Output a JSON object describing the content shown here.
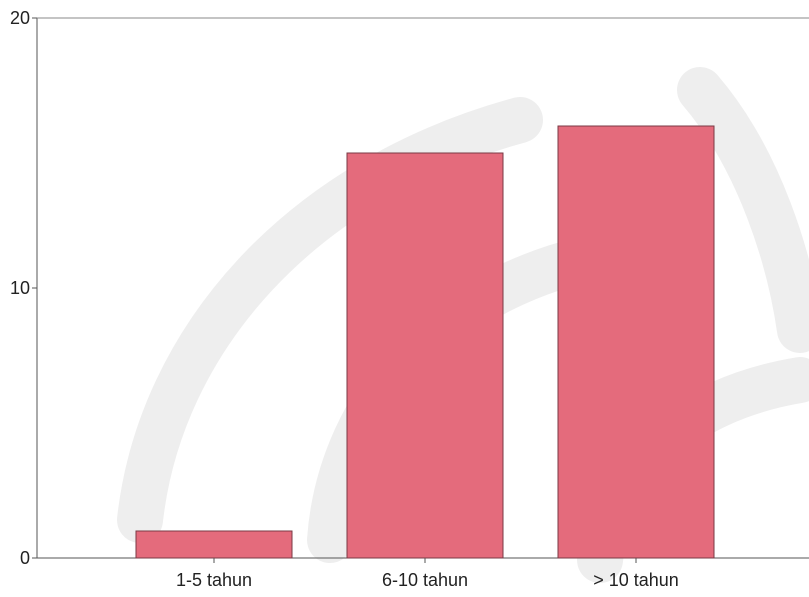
{
  "chart_data": {
    "type": "bar",
    "categories": [
      "1-5 tahun",
      "6-10 tahun",
      "> 10 tahun"
    ],
    "values": [
      1,
      15,
      16
    ],
    "ylim": [
      0,
      20
    ],
    "yticks": [
      0,
      10,
      20
    ],
    "title": "",
    "xlabel": "",
    "ylabel": "",
    "grid": false,
    "bar_color": "#e46b7c"
  }
}
